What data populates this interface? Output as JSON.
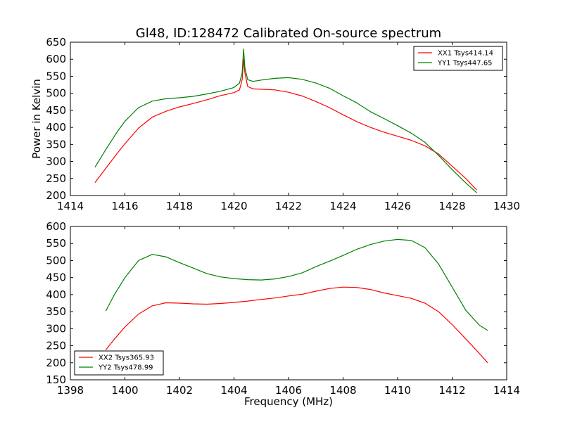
{
  "figure": {
    "title": "Gl48, ID:128472 Calibrated On-source spectrum",
    "xlabel": "Frequency (MHz)",
    "ylabel": "Power in Kelvin"
  },
  "chart_data": [
    {
      "type": "line",
      "title": "Gl48, ID:128472 Calibrated On-source spectrum",
      "ylabel": "Power in Kelvin",
      "xlabel": "",
      "xlim": [
        1414,
        1430
      ],
      "ylim": [
        200,
        650
      ],
      "xticks": [
        1414,
        1416,
        1418,
        1420,
        1422,
        1424,
        1426,
        1428,
        1430
      ],
      "yticks": [
        200,
        250,
        300,
        350,
        400,
        450,
        500,
        550,
        600,
        650
      ],
      "grid": false,
      "legend_position": "top-right",
      "series": [
        {
          "name": "XX1 Tsys414.14",
          "color": "#ff0000",
          "x": [
            1414.9,
            1415.3,
            1415.7,
            1416.0,
            1416.5,
            1417.0,
            1417.5,
            1418.0,
            1418.5,
            1419.0,
            1419.5,
            1420.0,
            1420.2,
            1420.3,
            1420.35,
            1420.4,
            1420.5,
            1420.7,
            1421.0,
            1421.5,
            1422.0,
            1422.5,
            1423.0,
            1423.5,
            1424.0,
            1424.5,
            1425.0,
            1425.5,
            1426.0,
            1426.5,
            1427.0,
            1427.5,
            1428.0,
            1428.5,
            1428.9
          ],
          "y": [
            238,
            280,
            322,
            352,
            398,
            430,
            447,
            460,
            470,
            481,
            493,
            502,
            510,
            540,
            600,
            560,
            520,
            513,
            512,
            510,
            503,
            492,
            476,
            458,
            437,
            417,
            400,
            386,
            374,
            362,
            346,
            322,
            286,
            250,
            216
          ]
        },
        {
          "name": "YY1 Tsys447.65",
          "color": "#008000",
          "x": [
            1414.9,
            1415.3,
            1415.7,
            1416.0,
            1416.5,
            1417.0,
            1417.5,
            1418.0,
            1418.5,
            1419.0,
            1419.5,
            1420.0,
            1420.2,
            1420.3,
            1420.35,
            1420.4,
            1420.5,
            1420.7,
            1421.0,
            1421.5,
            1422.0,
            1422.5,
            1423.0,
            1423.5,
            1424.0,
            1424.5,
            1425.0,
            1425.5,
            1426.0,
            1426.5,
            1427.0,
            1427.5,
            1428.0,
            1428.5,
            1428.9
          ],
          "y": [
            283,
            335,
            385,
            418,
            458,
            477,
            484,
            487,
            491,
            498,
            506,
            517,
            530,
            560,
            630,
            575,
            540,
            535,
            539,
            544,
            546,
            541,
            530,
            515,
            493,
            472,
            446,
            426,
            405,
            383,
            356,
            318,
            276,
            237,
            208
          ]
        }
      ]
    },
    {
      "type": "line",
      "title": "",
      "xlabel": "Frequency (MHz)",
      "ylabel": "",
      "xlim": [
        1398,
        1414
      ],
      "ylim": [
        150,
        600
      ],
      "xticks": [
        1398,
        1400,
        1402,
        1404,
        1406,
        1408,
        1410,
        1412,
        1414
      ],
      "yticks": [
        150,
        200,
        250,
        300,
        350,
        400,
        450,
        500,
        550,
        600
      ],
      "grid": false,
      "legend_position": "bottom-left",
      "series": [
        {
          "name": "XX2 Tsys365.93",
          "color": "#ff0000",
          "x": [
            1399.3,
            1399.6,
            1400.0,
            1400.5,
            1401.0,
            1401.5,
            1402.0,
            1402.5,
            1403.0,
            1403.5,
            1404.0,
            1404.5,
            1405.0,
            1405.5,
            1406.0,
            1406.5,
            1407.0,
            1407.5,
            1408.0,
            1408.5,
            1409.0,
            1409.5,
            1410.0,
            1410.5,
            1411.0,
            1411.5,
            1412.0,
            1412.5,
            1413.0,
            1413.3
          ],
          "y": [
            238,
            268,
            305,
            343,
            367,
            376,
            375,
            373,
            372,
            374,
            377,
            381,
            386,
            390,
            396,
            401,
            410,
            418,
            422,
            421,
            415,
            405,
            397,
            389,
            375,
            350,
            312,
            270,
            227,
            200
          ]
        },
        {
          "name": "YY2 Tsys478.99",
          "color": "#008000",
          "x": [
            1399.3,
            1399.6,
            1400.0,
            1400.5,
            1401.0,
            1401.5,
            1402.0,
            1402.5,
            1403.0,
            1403.5,
            1404.0,
            1404.5,
            1405.0,
            1405.5,
            1406.0,
            1406.5,
            1407.0,
            1407.5,
            1408.0,
            1408.5,
            1409.0,
            1409.5,
            1410.0,
            1410.5,
            1411.0,
            1411.5,
            1412.0,
            1412.5,
            1413.0,
            1413.3
          ],
          "y": [
            352,
            398,
            450,
            500,
            518,
            511,
            494,
            478,
            462,
            452,
            447,
            444,
            443,
            446,
            453,
            464,
            482,
            498,
            515,
            533,
            547,
            557,
            562,
            559,
            538,
            490,
            422,
            354,
            310,
            295
          ]
        }
      ]
    }
  ]
}
